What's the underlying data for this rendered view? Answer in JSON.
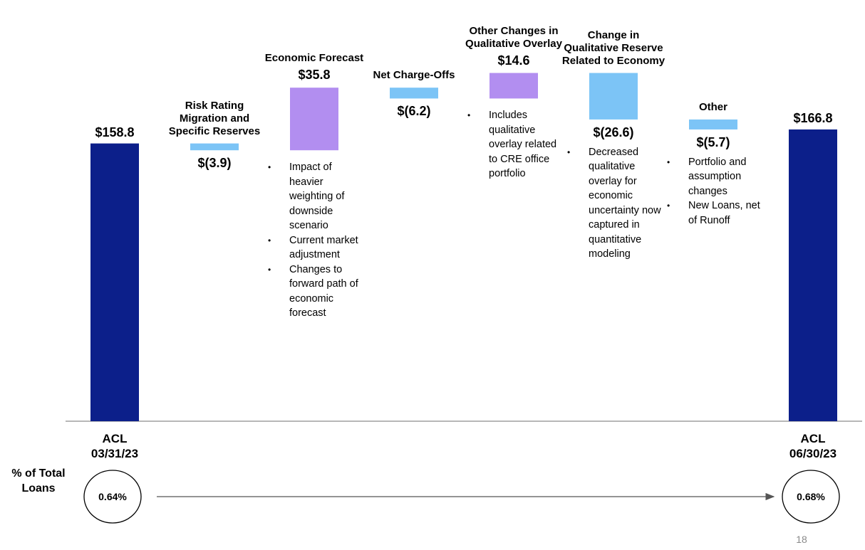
{
  "chart_data": {
    "type": "waterfall",
    "categories": [
      "ACL 03/31/23",
      "Risk Rating Migration and Specific Reserves",
      "Economic Forecast",
      "Net Charge-Offs",
      "Other Changes in Qualitative Overlay",
      "Change in Qualitative Reserve Related to Economy",
      "Other",
      "ACL 06/30/23"
    ],
    "values": [
      158.8,
      -3.9,
      35.8,
      -6.2,
      14.6,
      -26.6,
      -5.7,
      166.8
    ],
    "value_labels": [
      "$158.8",
      "$(3.9)",
      "$35.8",
      "$(6.2)",
      "$14.6",
      "$(26.6)",
      "$(5.7)",
      "$166.8"
    ],
    "colors": [
      "#0c1f8a",
      "#7cc4f6",
      "#b28ef0",
      "#7cc4f6",
      "#b28ef0",
      "#7cc4f6",
      "#7cc4f6",
      "#0c1f8a"
    ],
    "notes": [
      [],
      [],
      [
        "Impact of heavier weighting of downside scenario",
        "Current market adjustment",
        "Changes to forward path of economic forecast"
      ],
      [],
      [
        "Includes qualitative overlay related to CRE office portfolio"
      ],
      [
        "Decreased qualitative overlay for economic uncertainty now captured in quantitative modeling"
      ],
      [
        "Portfolio and assumption changes",
        "New Loans, net of Runoff"
      ],
      []
    ],
    "ylim": [
      0,
      240
    ],
    "percent_title": "% of Total Loans",
    "percent_labels": [
      "0.64%",
      "0.68%"
    ]
  },
  "page_number": "18"
}
